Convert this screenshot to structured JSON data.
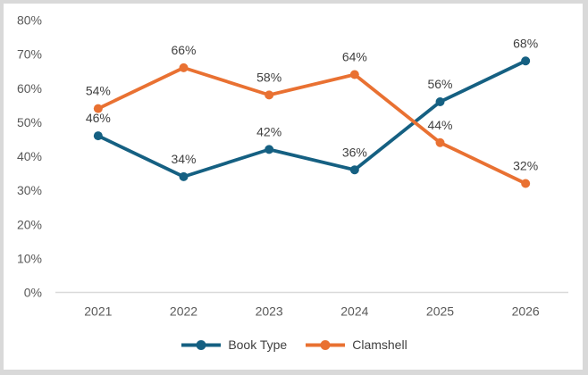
{
  "chart": {
    "colors": {
      "background": "#FFFFFF",
      "frame_border": "#D9D9D9",
      "axis_line": "#D9D9D9",
      "axis_label": "#595959",
      "data_label": "#404040",
      "legend_label": "#404040"
    }
  },
  "chart_data": {
    "type": "line",
    "title": "",
    "xlabel": "",
    "ylabel": "",
    "categories": [
      "2021",
      "2022",
      "2023",
      "2024",
      "2025",
      "2026"
    ],
    "series": [
      {
        "name": "Book Type",
        "color": "#156082",
        "values": [
          46,
          34,
          42,
          36,
          56,
          68
        ],
        "labels": [
          "46%",
          "34%",
          "42%",
          "36%",
          "56%",
          "68%"
        ]
      },
      {
        "name": "Clamshell",
        "color": "#E97132",
        "values": [
          54,
          66,
          58,
          64,
          44,
          32
        ],
        "labels": [
          "54%",
          "66%",
          "58%",
          "64%",
          "44%",
          "32%"
        ]
      }
    ],
    "y_tick_values": [
      0,
      10,
      20,
      30,
      40,
      50,
      60,
      70,
      80
    ],
    "y_ticks": [
      "0%",
      "10%",
      "20%",
      "30%",
      "40%",
      "50%",
      "60%",
      "70%",
      "80%"
    ],
    "ylim": [
      0,
      80
    ],
    "grid": false,
    "legend_position": "bottom",
    "marker": "circle",
    "data_labels_position": "above"
  }
}
